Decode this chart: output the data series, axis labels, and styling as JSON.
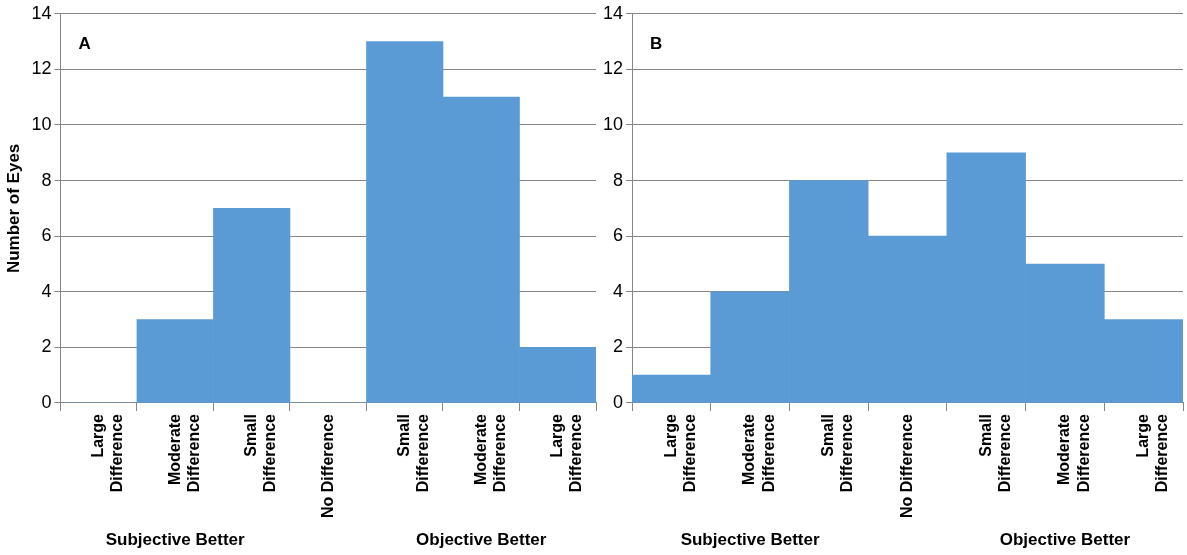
{
  "chart_data": [
    {
      "type": "bar",
      "title": "A",
      "ylabel": "Number of Eyes",
      "categories": [
        "Large Difference",
        "Moderate Difference",
        "Small Difference",
        "No Difference",
        "Small Difference",
        "Moderate Difference",
        "Large Difference"
      ],
      "values": [
        0,
        3,
        7,
        0,
        13,
        11,
        2
      ],
      "color": "#5b9bd5",
      "ylim": [
        0,
        14
      ],
      "yticks": [
        0,
        2,
        4,
        6,
        8,
        10,
        12,
        14
      ],
      "grid": "y",
      "annotations": [
        "Subjective Better",
        "Objective Better"
      ]
    },
    {
      "type": "bar",
      "title": "B",
      "categories": [
        "Large Difference",
        "Moderate Difference",
        "Small Difference",
        "No Difference",
        "Small Difference",
        "Moderate Difference",
        "Large Difference"
      ],
      "values": [
        1,
        4,
        8,
        6,
        9,
        5,
        3
      ],
      "color": "#5b9bd5",
      "ylim": [
        0,
        14
      ],
      "yticks": [
        0,
        2,
        4,
        6,
        8,
        10,
        12,
        14
      ],
      "grid": "y",
      "annotations": [
        "Subjective Better",
        "Objective Better"
      ]
    }
  ]
}
